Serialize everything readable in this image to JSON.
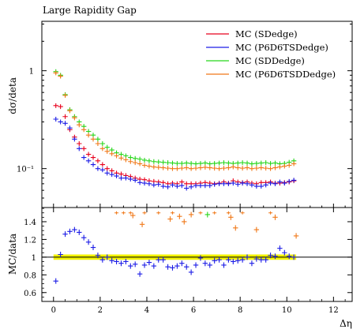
{
  "chart_data": [
    {
      "type": "scatter",
      "title": "Large Rapidity Gap",
      "ylabel": "dσ/deta",
      "xlim": [
        -0.5,
        12.8
      ],
      "ylim": [
        0.04,
        3.2
      ],
      "yscale": "log",
      "y_ticks": [
        {
          "value": 1,
          "label": "1"
        },
        {
          "value": 0.1,
          "label": "10⁻¹"
        }
      ],
      "legend_position": "top-right",
      "series": [
        {
          "name": "MC (SDedge)",
          "color": "#e8001c",
          "x": [
            0.1,
            0.3,
            0.5,
            0.7,
            0.9,
            1.1,
            1.3,
            1.5,
            1.7,
            1.9,
            2.1,
            2.3,
            2.5,
            2.7,
            2.9,
            3.1,
            3.3,
            3.5,
            3.7,
            3.9,
            4.1,
            4.3,
            4.5,
            4.7,
            4.9,
            5.1,
            5.3,
            5.5,
            5.7,
            5.9,
            6.1,
            6.3,
            6.5,
            6.7,
            6.9,
            7.1,
            7.3,
            7.5,
            7.7,
            7.9,
            8.1,
            8.3,
            8.5,
            8.7,
            8.9,
            9.1,
            9.3,
            9.5,
            9.7,
            9.9,
            10.1,
            10.3
          ],
          "values": [
            0.44,
            0.43,
            0.34,
            0.25,
            0.21,
            0.18,
            0.16,
            0.14,
            0.13,
            0.12,
            0.11,
            0.1,
            0.095,
            0.09,
            0.088,
            0.085,
            0.083,
            0.08,
            0.078,
            0.077,
            0.075,
            0.074,
            0.073,
            0.072,
            0.07,
            0.071,
            0.07,
            0.073,
            0.07,
            0.07,
            0.07,
            0.071,
            0.072,
            0.071,
            0.07,
            0.071,
            0.073,
            0.071,
            0.075,
            0.073,
            0.072,
            0.073,
            0.071,
            0.07,
            0.072,
            0.072,
            0.073,
            0.071,
            0.071,
            0.072,
            0.073,
            0.075
          ]
        },
        {
          "name": "MC (P6D6TSDedge)",
          "color": "#1c1ce6",
          "x": [
            0.1,
            0.3,
            0.5,
            0.7,
            0.9,
            1.1,
            1.3,
            1.5,
            1.7,
            1.9,
            2.1,
            2.3,
            2.5,
            2.7,
            2.9,
            3.1,
            3.3,
            3.5,
            3.7,
            3.9,
            4.1,
            4.3,
            4.5,
            4.7,
            4.9,
            5.1,
            5.3,
            5.5,
            5.7,
            5.9,
            6.1,
            6.3,
            6.5,
            6.7,
            6.9,
            7.1,
            7.3,
            7.5,
            7.7,
            7.9,
            8.1,
            8.3,
            8.5,
            8.7,
            8.9,
            9.1,
            9.3,
            9.5,
            9.7,
            9.9,
            10.1,
            10.3
          ],
          "values": [
            0.32,
            0.3,
            0.29,
            0.26,
            0.2,
            0.16,
            0.13,
            0.12,
            0.11,
            0.1,
            0.097,
            0.09,
            0.087,
            0.084,
            0.08,
            0.08,
            0.078,
            0.076,
            0.072,
            0.071,
            0.07,
            0.068,
            0.069,
            0.066,
            0.065,
            0.068,
            0.066,
            0.067,
            0.063,
            0.065,
            0.067,
            0.067,
            0.067,
            0.067,
            0.069,
            0.07,
            0.07,
            0.07,
            0.071,
            0.069,
            0.071,
            0.07,
            0.068,
            0.066,
            0.066,
            0.068,
            0.071,
            0.07,
            0.073,
            0.071,
            0.074,
            0.076
          ]
        },
        {
          "name": "MC (SDDedge)",
          "color": "#26d61a",
          "x": [
            0.1,
            0.3,
            0.5,
            0.7,
            0.9,
            1.1,
            1.3,
            1.5,
            1.7,
            1.9,
            2.1,
            2.3,
            2.5,
            2.7,
            2.9,
            3.1,
            3.3,
            3.5,
            3.7,
            3.9,
            4.1,
            4.3,
            4.5,
            4.7,
            4.9,
            5.1,
            5.3,
            5.5,
            5.7,
            5.9,
            6.1,
            6.3,
            6.5,
            6.7,
            6.9,
            7.1,
            7.3,
            7.5,
            7.7,
            7.9,
            8.1,
            8.3,
            8.5,
            8.7,
            8.9,
            9.1,
            9.3,
            9.5,
            9.7,
            9.9,
            10.1,
            10.3
          ],
          "values": [
            0.98,
            0.9,
            0.57,
            0.4,
            0.34,
            0.3,
            0.27,
            0.24,
            0.22,
            0.2,
            0.18,
            0.165,
            0.155,
            0.145,
            0.14,
            0.135,
            0.13,
            0.127,
            0.125,
            0.122,
            0.12,
            0.118,
            0.117,
            0.116,
            0.115,
            0.114,
            0.113,
            0.113,
            0.114,
            0.113,
            0.112,
            0.113,
            0.114,
            0.112,
            0.113,
            0.114,
            0.115,
            0.114,
            0.113,
            0.114,
            0.115,
            0.114,
            0.112,
            0.113,
            0.114,
            0.115,
            0.113,
            0.114,
            0.112,
            0.113,
            0.116,
            0.12
          ]
        },
        {
          "name": "MC (P6D6TSDDedge)",
          "color": "#f07818",
          "x": [
            0.1,
            0.3,
            0.5,
            0.7,
            0.9,
            1.1,
            1.3,
            1.5,
            1.7,
            1.9,
            2.1,
            2.3,
            2.5,
            2.7,
            2.9,
            3.1,
            3.3,
            3.5,
            3.7,
            3.9,
            4.1,
            4.3,
            4.5,
            4.7,
            4.9,
            5.1,
            5.3,
            5.5,
            5.7,
            5.9,
            6.1,
            6.3,
            6.5,
            6.7,
            6.9,
            7.1,
            7.3,
            7.5,
            7.7,
            7.9,
            8.1,
            8.3,
            8.5,
            8.7,
            8.9,
            9.1,
            9.3,
            9.5,
            9.7,
            9.9,
            10.1,
            10.3
          ],
          "values": [
            0.95,
            0.88,
            0.56,
            0.39,
            0.33,
            0.28,
            0.25,
            0.22,
            0.2,
            0.18,
            0.16,
            0.15,
            0.142,
            0.135,
            0.128,
            0.123,
            0.118,
            0.115,
            0.112,
            0.108,
            0.106,
            0.104,
            0.103,
            0.102,
            0.101,
            0.1,
            0.1,
            0.101,
            0.102,
            0.1,
            0.101,
            0.102,
            0.103,
            0.102,
            0.101,
            0.1,
            0.101,
            0.102,
            0.104,
            0.102,
            0.101,
            0.102,
            0.1,
            0.101,
            0.102,
            0.101,
            0.1,
            0.102,
            0.104,
            0.106,
            0.108,
            0.112
          ]
        }
      ]
    },
    {
      "type": "scatter",
      "ylabel": "MC/data",
      "xlabel": "Δη",
      "xlim": [
        -0.5,
        12.8
      ],
      "ylim": [
        0.5,
        1.56
      ],
      "x_ticks": [
        0,
        2,
        4,
        6,
        8,
        10,
        12
      ],
      "y_ticks": [
        0.6,
        0.8,
        1,
        1.2,
        1.4
      ],
      "reference_line": 1,
      "uncertainty_band": {
        "color": "#f2f200",
        "x_range": [
          0,
          10.4
        ],
        "y_range": [
          0.97,
          1.03
        ]
      },
      "series": [
        {
          "name": "MC (P6D6TSDedge)",
          "color": "#1c1ce6",
          "x": [
            0.1,
            0.3,
            0.5,
            0.7,
            0.9,
            1.1,
            1.3,
            1.5,
            1.7,
            1.9,
            2.1,
            2.3,
            2.5,
            2.7,
            2.9,
            3.1,
            3.3,
            3.5,
            3.7,
            3.9,
            4.1,
            4.3,
            4.5,
            4.7,
            4.9,
            5.1,
            5.3,
            5.5,
            5.7,
            5.9,
            6.1,
            6.3,
            6.5,
            6.7,
            6.9,
            7.1,
            7.3,
            7.5,
            7.7,
            7.9,
            8.1,
            8.3,
            8.5,
            8.7,
            8.9,
            9.1,
            9.3,
            9.5,
            9.7,
            9.9,
            10.1,
            10.3
          ],
          "values": [
            0.73,
            1.03,
            1.26,
            1.29,
            1.31,
            1.28,
            1.22,
            1.17,
            1.11,
            1.02,
            0.97,
            1.0,
            0.96,
            0.95,
            0.93,
            0.95,
            0.9,
            0.92,
            0.81,
            0.91,
            0.94,
            0.9,
            0.97,
            0.97,
            0.89,
            0.88,
            0.9,
            0.93,
            0.89,
            0.83,
            0.91,
            0.99,
            0.93,
            0.91,
            0.96,
            0.97,
            0.91,
            0.97,
            0.95,
            0.96,
            0.97,
            1.0,
            0.93,
            0.98,
            0.97,
            0.97,
            1.02,
            1.01,
            1.1,
            1.05,
            1.01,
            1.0
          ]
        },
        {
          "name": "MC (P6D6TSDDedge)",
          "color": "#f07818",
          "x": [
            3.4,
            3.8,
            5.0,
            5.4,
            5.6,
            5.9,
            7.6,
            7.8,
            8.7,
            9.5,
            10.4
          ],
          "values": [
            1.47,
            1.37,
            1.43,
            1.46,
            1.4,
            1.48,
            1.45,
            1.33,
            1.31,
            1.45,
            1.24
          ]
        },
        {
          "name": "MC (SDDedge)",
          "color": "#26d61a",
          "x": [
            6.6
          ],
          "values": [
            1.48
          ]
        }
      ],
      "edge_markers": {
        "color": "#f07818",
        "value": 1.5,
        "x": [
          2.7,
          3.0,
          3.3,
          3.9,
          4.5,
          5.1,
          6.3,
          6.9,
          7.5,
          8.1,
          9.3
        ]
      }
    }
  ]
}
